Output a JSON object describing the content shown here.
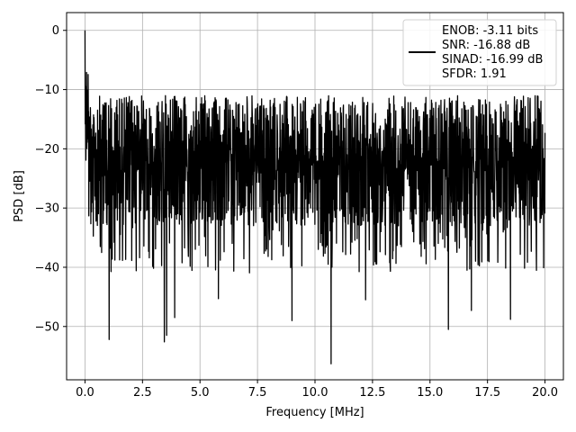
{
  "chart_data": {
    "type": "line",
    "xlabel": "Frequency [MHz]",
    "ylabel": "PSD [dB]",
    "xlim": [
      -0.8,
      20.8
    ],
    "ylim": [
      -59,
      3
    ],
    "x_ticks": [
      0.0,
      2.5,
      5.0,
      7.5,
      10.0,
      12.5,
      15.0,
      17.5,
      20.0
    ],
    "x_tick_labels": [
      "0.0",
      "2.5",
      "5.0",
      "7.5",
      "10.0",
      "12.5",
      "15.0",
      "17.5",
      "20.0"
    ],
    "y_ticks": [
      0,
      -10,
      -20,
      -30,
      -40,
      -50
    ],
    "y_tick_labels": [
      "0",
      "−10",
      "−20",
      "−30",
      "−40",
      "−50"
    ],
    "grid": true,
    "legend_position": "upper right",
    "legend_entries": [
      "ENOB: -3.11 bits",
      "SNR: -16.88 dB",
      "SINAD: -16.99 dB",
      "SFDR: 1.91"
    ],
    "series": [
      {
        "color": "#000000",
        "description": "dense noise-like power spectral density from 0 to 20 MHz",
        "x_range": [
          0.0,
          20.0
        ],
        "points_approx": 2048,
        "peak": {
          "x": 0.0,
          "y": 0.0
        },
        "typical_band": [
          -35,
          -15
        ],
        "notable_minima": [
          {
            "x": 1.05,
            "y": -52.2
          },
          {
            "x": 3.45,
            "y": -52.6
          },
          {
            "x": 3.55,
            "y": -51.5
          },
          {
            "x": 3.9,
            "y": -48.5
          },
          {
            "x": 5.8,
            "y": -45.3
          },
          {
            "x": 9.0,
            "y": -49.0
          },
          {
            "x": 10.7,
            "y": -56.3
          },
          {
            "x": 12.2,
            "y": -45.5
          },
          {
            "x": 15.8,
            "y": -50.5
          },
          {
            "x": 16.8,
            "y": -47.3
          },
          {
            "x": 18.5,
            "y": -48.8
          }
        ]
      }
    ]
  }
}
